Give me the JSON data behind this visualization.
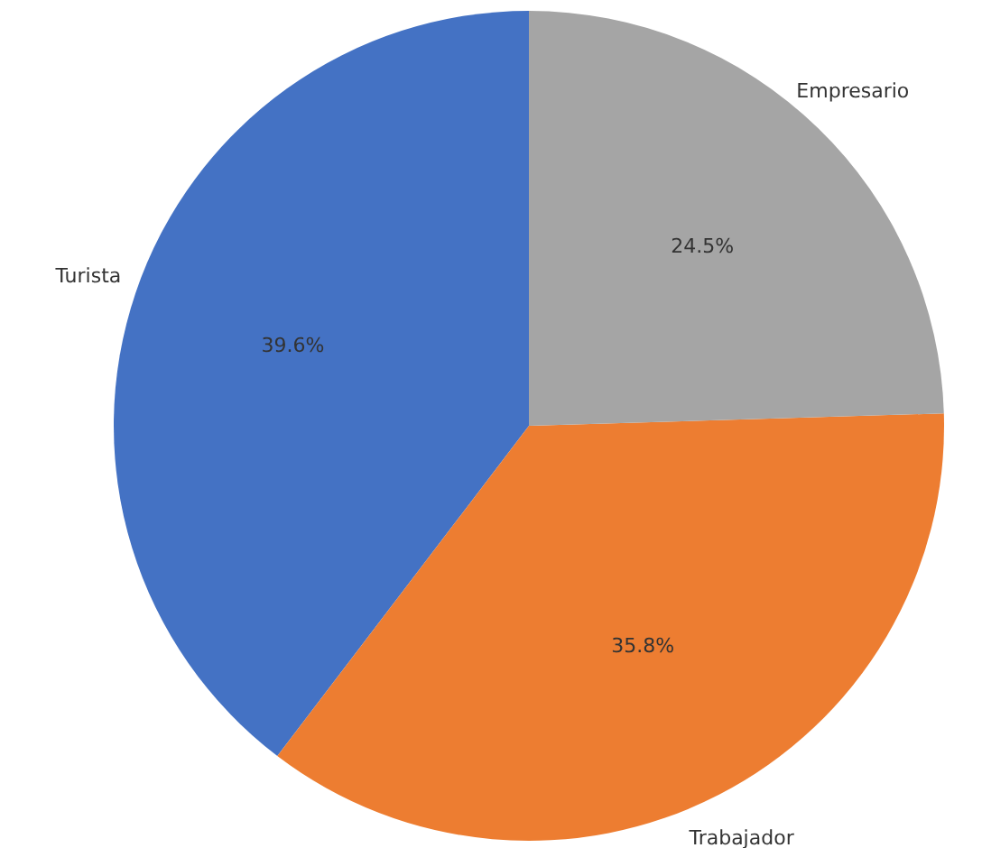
{
  "chart_data": {
    "type": "pie",
    "categories": [
      "Turista",
      "Trabajador",
      "Empresario"
    ],
    "values": [
      39.6,
      35.8,
      24.5
    ],
    "colors": [
      "#4472c4",
      "#ed7d31",
      "#a5a5a5"
    ],
    "value_labels": [
      "39.6%",
      "35.8%",
      "24.5%"
    ]
  }
}
